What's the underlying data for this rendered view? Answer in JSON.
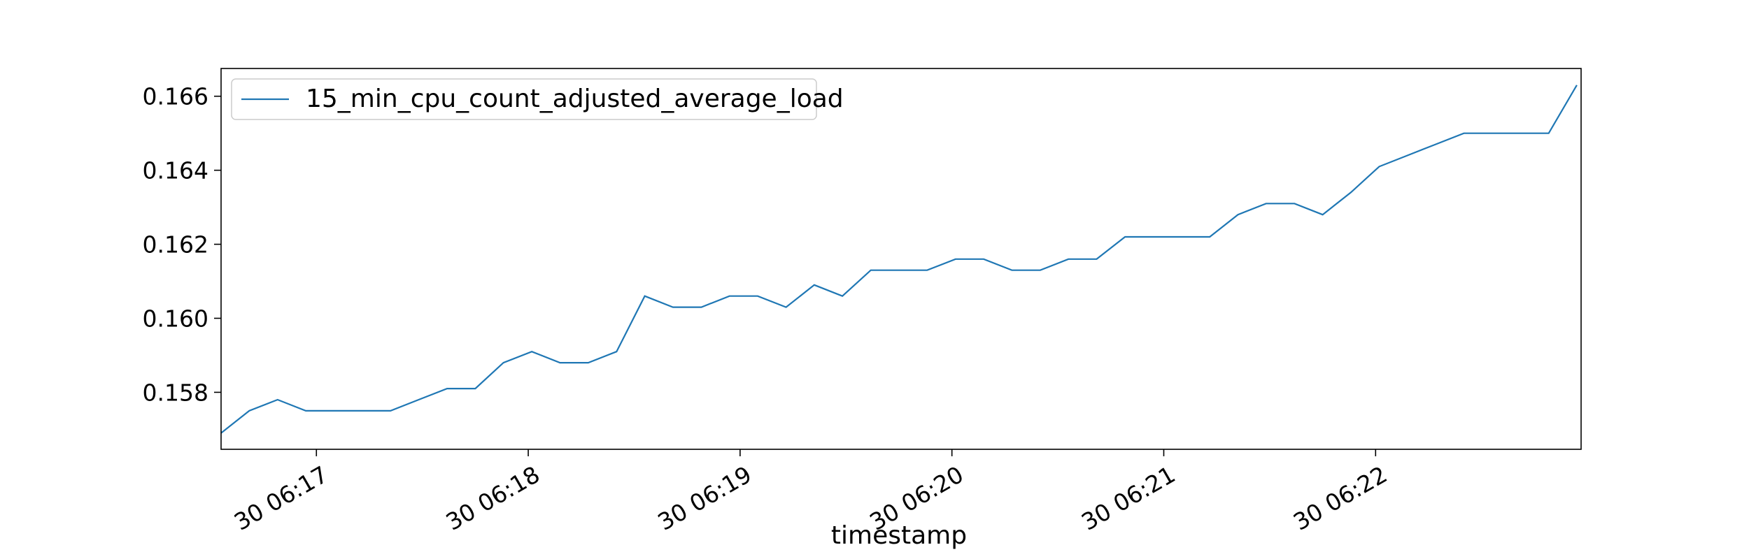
{
  "chart_data": {
    "type": "line",
    "xlabel": "timestamp",
    "ylabel": "",
    "title": "",
    "x_tick_labels": [
      "30 06:17",
      "30 06:18",
      "30 06:19",
      "30 06:20",
      "30 06:21",
      "30 06:22"
    ],
    "x_tick_minutes": [
      17,
      18,
      19,
      20,
      21,
      22
    ],
    "y_tick_labels": [
      "0.158",
      "0.160",
      "0.162",
      "0.164",
      "0.166"
    ],
    "y_ticks": [
      0.158,
      0.16,
      0.162,
      0.164,
      0.166
    ],
    "xlim_minutes": [
      16.55,
      22.97
    ],
    "ylim": [
      0.15646,
      0.16675
    ],
    "grid": false,
    "legend_position": "top-left",
    "color": "#1f77b4",
    "series": [
      {
        "name": "15_min_cpu_count_adjusted_average_load",
        "x_minutes": [
          16.55,
          16.683,
          16.817,
          16.95,
          17.083,
          17.217,
          17.35,
          17.483,
          17.617,
          17.75,
          17.883,
          18.017,
          18.15,
          18.283,
          18.417,
          18.55,
          18.683,
          18.817,
          18.95,
          19.083,
          19.217,
          19.35,
          19.483,
          19.617,
          19.75,
          19.883,
          20.017,
          20.15,
          20.283,
          20.417,
          20.55,
          20.683,
          20.817,
          20.95,
          21.083,
          21.217,
          21.35,
          21.483,
          21.617,
          21.75,
          21.883,
          22.017,
          22.15,
          22.283,
          22.417,
          22.55,
          22.683,
          22.817,
          22.95
        ],
        "values": [
          0.1569,
          0.1575,
          0.1578,
          0.1575,
          0.1575,
          0.1575,
          0.1575,
          0.1578,
          0.1581,
          0.1581,
          0.1588,
          0.1591,
          0.1588,
          0.1588,
          0.1591,
          0.1606,
          0.1603,
          0.1603,
          0.1606,
          0.1606,
          0.1603,
          0.1609,
          0.1606,
          0.1613,
          0.1613,
          0.1613,
          0.1616,
          0.1616,
          0.1613,
          0.1613,
          0.1616,
          0.1616,
          0.1622,
          0.1622,
          0.1622,
          0.1622,
          0.1628,
          0.1631,
          0.1631,
          0.1628,
          0.1634,
          0.1641,
          0.1644,
          0.1647,
          0.165,
          0.165,
          0.165,
          0.165,
          0.1663
        ]
      }
    ]
  }
}
